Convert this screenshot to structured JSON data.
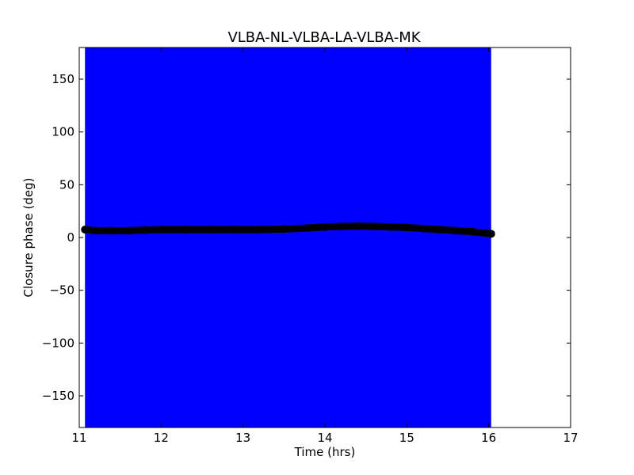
{
  "chart_data": {
    "type": "scatter",
    "title": "VLBA-NL-VLBA-LA-VLBA-MK",
    "xlabel": "Time (hrs)",
    "ylabel": "Closure phase (deg)",
    "xlim": [
      11,
      17
    ],
    "ylim": [
      -180,
      180
    ],
    "xticks": [
      11,
      12,
      13,
      14,
      15,
      16,
      17
    ],
    "yticks": [
      -150,
      -100,
      -50,
      0,
      50,
      100,
      150
    ],
    "grid": false,
    "colors": {
      "band": "#0000ff",
      "points": "#000000"
    },
    "bands": [
      {
        "x": [
          11.07,
          16.03
        ],
        "y": [
          -180,
          180
        ],
        "color": "#0000ff"
      }
    ],
    "series": [
      {
        "x": [
          11.07,
          11.2,
          11.4,
          11.6,
          11.8,
          12.0,
          12.3,
          12.6,
          12.9,
          13.2,
          13.5,
          13.8,
          14.0,
          14.2,
          14.4,
          14.6,
          14.8,
          15.0,
          15.2,
          15.4,
          15.6,
          15.8,
          16.03
        ],
        "y": [
          7.5,
          6.5,
          6.5,
          6.5,
          7.0,
          7.5,
          7.5,
          7.5,
          7.5,
          7.5,
          8.0,
          9.0,
          10.0,
          10.5,
          10.8,
          10.5,
          10.0,
          9.5,
          8.5,
          7.5,
          6.5,
          5.5,
          3.5
        ]
      }
    ]
  }
}
